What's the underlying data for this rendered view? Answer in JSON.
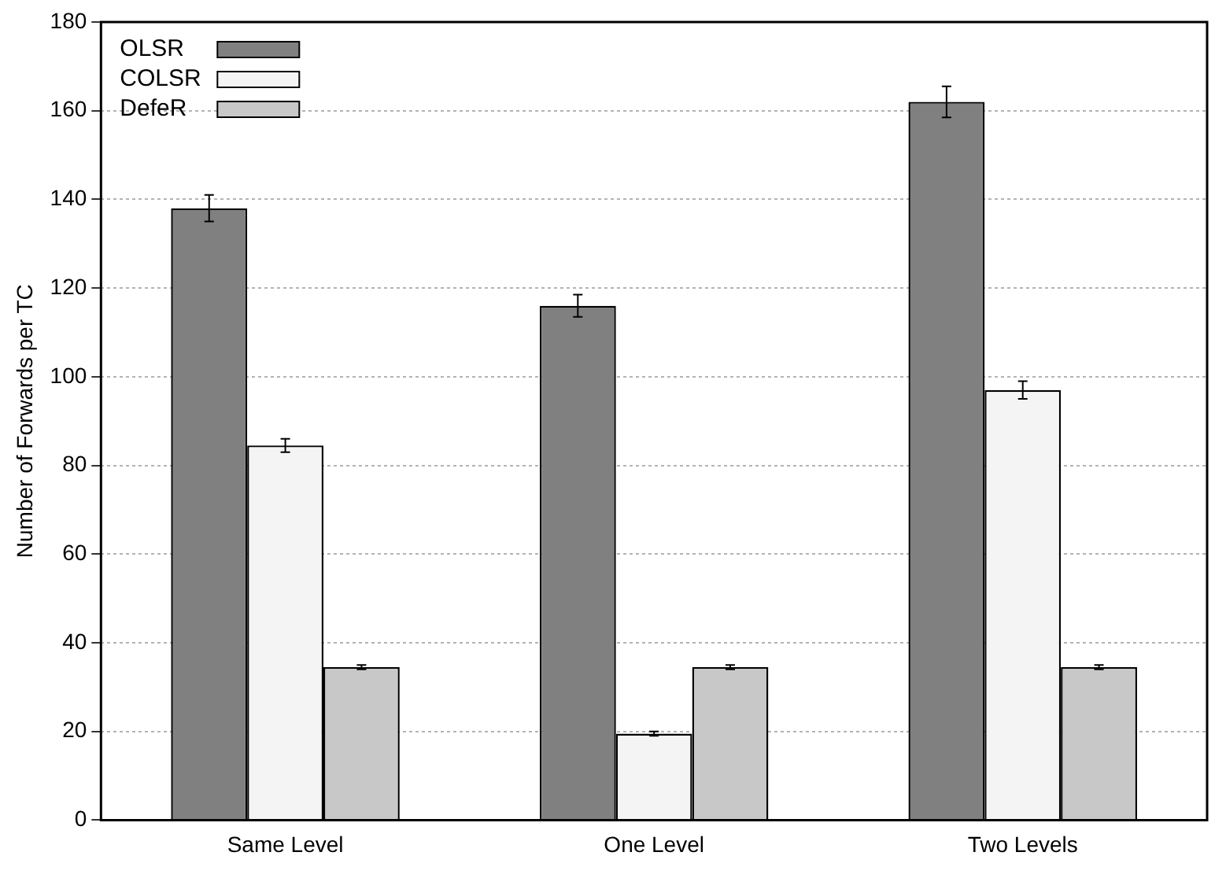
{
  "chart_data": {
    "type": "bar",
    "ylabel": "Number of Forwards per TC",
    "categories": [
      "Same Level",
      "One Level",
      "Two Levels"
    ],
    "series": [
      {
        "name": "OLSR",
        "color": "#808080",
        "values": [
          138,
          116,
          162
        ],
        "errors": [
          3,
          2.5,
          3.5
        ]
      },
      {
        "name": "COLSR",
        "color": "#f4f4f4",
        "values": [
          84.5,
          19.5,
          97
        ],
        "errors": [
          1.5,
          0.5,
          2
        ]
      },
      {
        "name": "DefeR",
        "color": "#c8c8c8",
        "values": [
          34.5,
          34.5,
          34.5
        ],
        "errors": [
          0.5,
          0.5,
          0.5
        ]
      }
    ],
    "ylim": [
      0,
      180
    ],
    "yticks": [
      0,
      20,
      40,
      60,
      80,
      100,
      120,
      140,
      160,
      180
    ],
    "grid": "y",
    "legend": "top left"
  }
}
